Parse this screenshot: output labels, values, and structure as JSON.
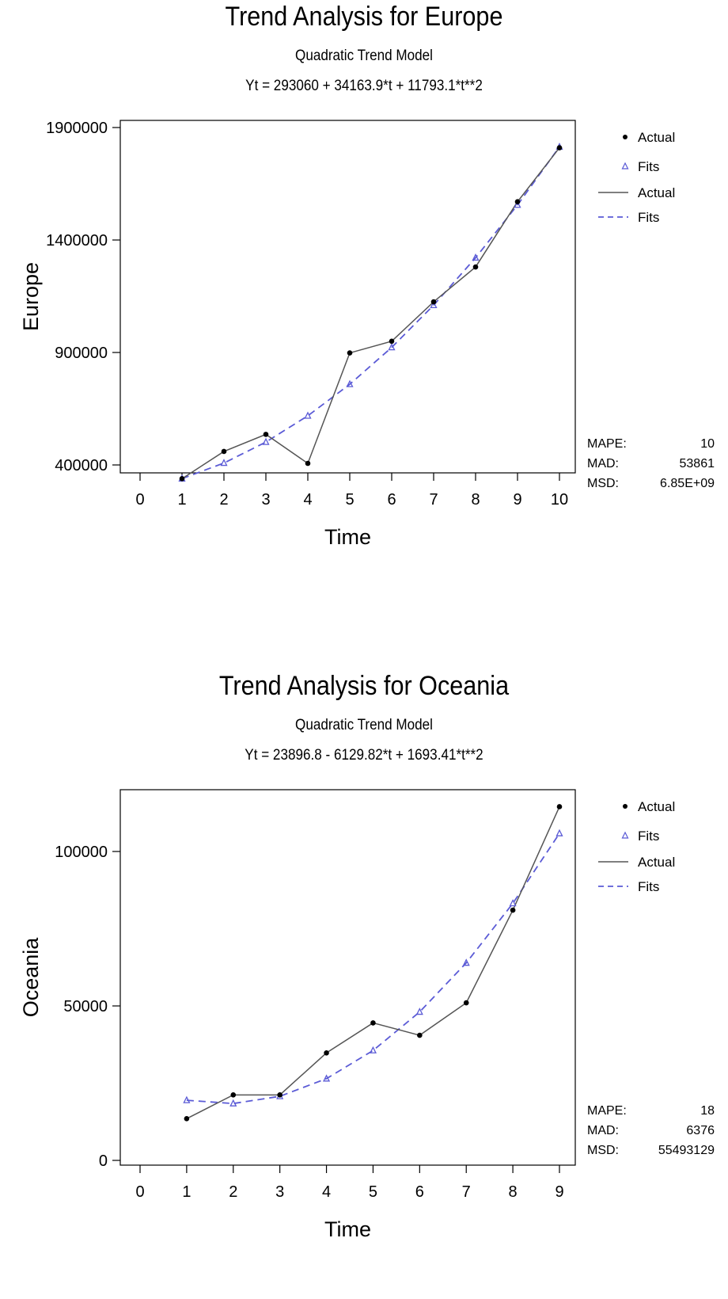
{
  "chart_data": [
    {
      "type": "line",
      "title": "Trend Analysis for Europe",
      "subtitle": "Quadratic Trend Model",
      "equation": "Yt = 293060 + 34163.9*t  + 11793.1*t**2",
      "xlabel": "Time",
      "ylabel": "Europe",
      "xlim": [
        0,
        10
      ],
      "ylim": [
        300000,
        1900000
      ],
      "x_ticks": [
        "0",
        "1",
        "2",
        "3",
        "4",
        "5",
        "6",
        "7",
        "8",
        "9",
        "10"
      ],
      "y_ticks": [
        "400000",
        "900000",
        "1400000",
        "1900000"
      ],
      "x": [
        1,
        2,
        3,
        4,
        5,
        6,
        7,
        8,
        9,
        10
      ],
      "series": [
        {
          "name": "Actual",
          "values": [
            339000,
            460000,
            536000,
            407000,
            898000,
            950000,
            1125000,
            1280000,
            1570000,
            1810000
          ]
        },
        {
          "name": "Fits",
          "values": [
            339017,
            408560,
            501689,
            618404,
            758705,
            922592,
            1110065,
            1321124,
            1555769,
            1814000
          ]
        }
      ],
      "legend": [
        "Actual",
        "Fits",
        "Actual",
        "Fits"
      ],
      "stats": [
        {
          "label": "MAPE:",
          "value": "10"
        },
        {
          "label": "MAD:",
          "value": "53861"
        },
        {
          "label": "MSD:",
          "value": "6.85E+09"
        }
      ],
      "colors": {
        "actual": "#000000",
        "fits": "#5b5bd6",
        "actual_line": "#555555"
      }
    },
    {
      "type": "line",
      "title": "Trend Analysis for Oceania",
      "subtitle": "Quadratic Trend Model",
      "equation": "Yt = 23896.8 - 6129.82*t  + 1693.41*t**2",
      "xlabel": "Time",
      "ylabel": "Oceania",
      "xlim": [
        0,
        9
      ],
      "ylim": [
        -3000,
        120000
      ],
      "x_ticks": [
        "0",
        "1",
        "2",
        "3",
        "4",
        "5",
        "6",
        "7",
        "8",
        "9"
      ],
      "y_ticks": [
        "0",
        "50000",
        "100000"
      ],
      "x": [
        1,
        2,
        3,
        4,
        5,
        6,
        7,
        8,
        9
      ],
      "series": [
        {
          "name": "Actual",
          "values": [
            13500,
            21200,
            21200,
            34800,
            44500,
            40500,
            51000,
            81000,
            114500
          ]
        },
        {
          "name": "Fits",
          "values": [
            19460,
            18410,
            20740,
            26460,
            35570,
            48060,
            63930,
            83200,
            105850
          ]
        }
      ],
      "legend": [
        "Actual",
        "Fits",
        "Actual",
        "Fits"
      ],
      "stats": [
        {
          "label": "MAPE:",
          "value": "18"
        },
        {
          "label": "MAD:",
          "value": "6376"
        },
        {
          "label": "MSD:",
          "value": "55493129"
        }
      ],
      "colors": {
        "actual": "#000000",
        "fits": "#5b5bd6",
        "actual_line": "#555555"
      }
    }
  ]
}
